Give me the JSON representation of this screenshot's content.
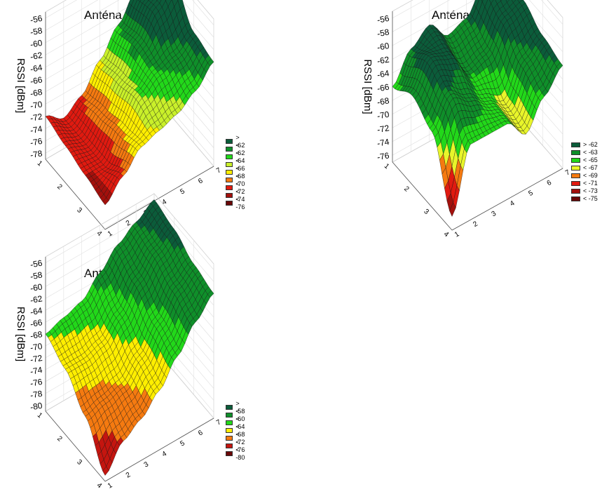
{
  "chart_data": [
    {
      "type": "surface3d",
      "title": "Anténa 1",
      "zlabel": "RSSI [dBm]",
      "z_ticks": [
        "-56",
        "-58",
        "-60",
        "-62",
        "-64",
        "-66",
        "-68",
        "-70",
        "-72",
        "-74",
        "-76",
        "-78"
      ],
      "x_ticks": [
        "1",
        "2",
        "3",
        "4",
        "5",
        "6",
        "7"
      ],
      "y_ticks": [
        "1",
        "2",
        "3",
        "4"
      ],
      "zlim": [
        -79,
        -55
      ],
      "legend": [
        {
          "label": "> -62",
          "color": "#0b5c3a"
        },
        {
          "label": "< -62",
          "color": "#0f8f2a"
        },
        {
          "label": "< -64",
          "color": "#22d81a"
        },
        {
          "label": "< -66",
          "color": "#c9f02a"
        },
        {
          "label": "< -68",
          "color": "#ffee00"
        },
        {
          "label": "< -70",
          "color": "#f57a10"
        },
        {
          "label": "< -72",
          "color": "#e01a10"
        },
        {
          "label": "< -74",
          "color": "#a3100c"
        },
        {
          "label": "< -76",
          "color": "#6a0707"
        }
      ],
      "surface": [
        [
          -72,
          -74,
          -72,
          -68,
          -64,
          -60,
          -57
        ],
        [
          -73,
          -74,
          -71,
          -67,
          -63,
          -59,
          -56
        ],
        [
          -74,
          -74,
          -70,
          -66,
          -64,
          -63,
          -61
        ],
        [
          -75,
          -72,
          -69,
          -68,
          -67,
          -65,
          -62
        ]
      ]
    },
    {
      "type": "surface3d",
      "title": "Anténa 2",
      "zlabel": "RSSI [dBm]",
      "z_ticks": [
        "-56",
        "-58",
        "-60",
        "-62",
        "-64",
        "-66",
        "-68",
        "-70",
        "-72",
        "-74",
        "-76"
      ],
      "x_ticks": [
        "1",
        "2",
        "3",
        "4",
        "5",
        "6",
        "7"
      ],
      "y_ticks": [
        "1",
        "2",
        "3",
        "4"
      ],
      "zlim": [
        -77,
        -55
      ],
      "legend": [
        {
          "label": "> -62",
          "color": "#0b5c3a"
        },
        {
          "label": "< -63",
          "color": "#0f8f2a"
        },
        {
          "label": "< -65",
          "color": "#22d81a"
        },
        {
          "label": "< -67",
          "color": "#e8f52a"
        },
        {
          "label": "< -69",
          "color": "#f57a10"
        },
        {
          "label": "< -71",
          "color": "#e01a10"
        },
        {
          "label": "< -73",
          "color": "#a3100c"
        },
        {
          "label": "< -75",
          "color": "#6a0707"
        }
      ],
      "surface": [
        [
          -66,
          -62,
          -60,
          -63,
          -62,
          -58,
          -57
        ],
        [
          -64,
          -60,
          -61,
          -65,
          -64,
          -60,
          -59
        ],
        [
          -66,
          -62,
          -64,
          -66,
          -68,
          -63,
          -61
        ],
        [
          -75,
          -66,
          -66,
          -66,
          -69,
          -65,
          -62
        ]
      ]
    },
    {
      "type": "surface3d",
      "title": "Anténa 3",
      "zlabel": "RSSI [dBm]",
      "z_ticks": [
        "-56",
        "-58",
        "-60",
        "-62",
        "-64",
        "-66",
        "-68",
        "-70",
        "-72",
        "-74",
        "-76",
        "-78",
        "-80"
      ],
      "x_ticks": [
        "1",
        "2",
        "3",
        "4",
        "5",
        "6",
        "7"
      ],
      "y_ticks": [
        "1",
        "2",
        "3",
        "4"
      ],
      "zlim": [
        -81,
        -55
      ],
      "legend": [
        {
          "label": "> -58",
          "color": "#0b5c3a"
        },
        {
          "label": "< -60",
          "color": "#0f8f2a"
        },
        {
          "label": "< -64",
          "color": "#22d81a"
        },
        {
          "label": "< -68",
          "color": "#ffee00"
        },
        {
          "label": "< -72",
          "color": "#f57a10"
        },
        {
          "label": "< -76",
          "color": "#c4150f"
        },
        {
          "label": "< -80",
          "color": "#6a0707"
        }
      ],
      "surface": [
        [
          -68,
          -67,
          -66,
          -63,
          -60,
          -58,
          -56
        ],
        [
          -70,
          -70,
          -69,
          -66,
          -62,
          -59,
          -57
        ],
        [
          -74,
          -73,
          -72,
          -69,
          -65,
          -61,
          -59
        ],
        [
          -80,
          -76,
          -74,
          -71,
          -67,
          -63,
          -60
        ]
      ]
    }
  ]
}
